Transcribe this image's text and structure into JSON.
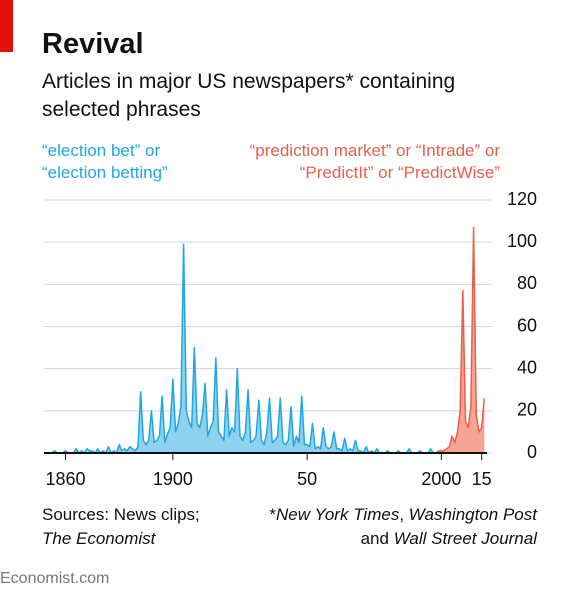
{
  "chart_data": {
    "type": "area",
    "title": "Revival",
    "subtitle": "Articles in major US newspapers* containing selected phrases",
    "series": [
      {
        "name": "“election bet” or “election betting”",
        "color": "#1fa8e0",
        "fill": "#8ed2f0",
        "x": [
          1852,
          1853,
          1854,
          1855,
          1856,
          1857,
          1858,
          1859,
          1860,
          1861,
          1862,
          1863,
          1864,
          1865,
          1866,
          1867,
          1868,
          1869,
          1870,
          1871,
          1872,
          1873,
          1874,
          1875,
          1876,
          1877,
          1878,
          1879,
          1880,
          1881,
          1882,
          1883,
          1884,
          1885,
          1886,
          1887,
          1888,
          1889,
          1890,
          1891,
          1892,
          1893,
          1894,
          1895,
          1896,
          1897,
          1898,
          1899,
          1900,
          1901,
          1902,
          1903,
          1904,
          1905,
          1906,
          1907,
          1908,
          1909,
          1910,
          1911,
          1912,
          1913,
          1914,
          1915,
          1916,
          1917,
          1918,
          1919,
          1920,
          1921,
          1922,
          1923,
          1924,
          1925,
          1926,
          1927,
          1928,
          1929,
          1930,
          1931,
          1932,
          1933,
          1934,
          1935,
          1936,
          1937,
          1938,
          1939,
          1940,
          1941,
          1942,
          1943,
          1944,
          1945,
          1946,
          1947,
          1948,
          1949,
          1950,
          1951,
          1952,
          1953,
          1954,
          1955,
          1956,
          1957,
          1958,
          1959,
          1960,
          1961,
          1962,
          1963,
          1964,
          1965,
          1966,
          1967,
          1968,
          1969,
          1970,
          1971,
          1972,
          1973,
          1974,
          1975,
          1976,
          1977,
          1978,
          1979,
          1980,
          1981,
          1982,
          1983,
          1984,
          1985,
          1986,
          1987,
          1988,
          1989,
          1990,
          1991,
          1992,
          1993,
          1994,
          1995,
          1996,
          1997,
          1998,
          1999,
          2000,
          2001,
          2002,
          2003,
          2004,
          2005,
          2006,
          2007,
          2008,
          2009,
          2010,
          2011,
          2012,
          2013,
          2014,
          2015,
          2016
        ],
        "values": [
          0,
          0,
          0,
          0,
          1,
          0,
          0,
          0,
          1,
          0,
          0,
          0,
          2,
          0,
          1,
          0,
          2,
          1,
          1,
          0,
          2,
          0,
          1,
          0,
          3,
          0,
          1,
          0,
          4,
          1,
          2,
          1,
          3,
          2,
          1,
          3,
          29,
          6,
          4,
          6,
          20,
          5,
          6,
          8,
          27,
          5,
          9,
          12,
          35,
          10,
          14,
          22,
          99,
          20,
          15,
          12,
          50,
          14,
          12,
          18,
          33,
          8,
          12,
          15,
          45,
          10,
          8,
          6,
          30,
          8,
          12,
          10,
          40,
          8,
          6,
          10,
          30,
          5,
          6,
          8,
          25,
          6,
          4,
          10,
          26,
          5,
          6,
          8,
          26,
          5,
          4,
          6,
          22,
          3,
          8,
          5,
          27,
          4,
          4,
          3,
          14,
          2,
          3,
          2,
          12,
          3,
          2,
          3,
          10,
          2,
          2,
          1,
          7,
          1,
          2,
          1,
          6,
          1,
          1,
          0,
          3,
          0,
          1,
          0,
          2,
          0,
          0,
          0,
          1,
          0,
          0,
          0,
          1,
          0,
          0,
          0,
          2,
          0,
          0,
          0,
          1,
          0,
          0,
          0,
          2,
          0,
          0,
          0,
          1,
          0,
          1,
          0,
          5,
          1,
          2,
          3,
          4,
          1,
          2,
          3,
          18,
          2,
          1,
          3,
          4
        ]
      },
      {
        "name": "“prediction market” or “Intrade” or “PredictIt” or “PredictWise”",
        "color": "#e8604c",
        "fill": "#f4a594",
        "x": [
          1990,
          1991,
          1992,
          1993,
          1994,
          1995,
          1996,
          1997,
          1998,
          1999,
          2000,
          2001,
          2002,
          2003,
          2004,
          2005,
          2006,
          2007,
          2008,
          2009,
          2010,
          2011,
          2012,
          2013,
          2014,
          2015,
          2016
        ],
        "values": [
          0,
          0,
          0,
          0,
          0,
          0,
          0,
          0,
          0,
          1,
          1,
          1,
          2,
          3,
          8,
          5,
          10,
          20,
          77,
          15,
          12,
          22,
          107,
          18,
          10,
          12,
          26
        ]
      }
    ],
    "xlim": [
      1852,
      2017
    ],
    "xticks": [
      1860,
      1900,
      {
        "value": 1950,
        "label": "50"
      },
      2000,
      {
        "value": 2015,
        "label": "15"
      }
    ],
    "ylim": [
      0,
      120
    ],
    "yticks": [
      0,
      20,
      40,
      60,
      80,
      100,
      120
    ],
    "grid": true,
    "source": [
      "Sources: News clips;",
      "The Economist"
    ],
    "footnote": [
      [
        "*",
        "New York Times",
        ", ",
        "Washington Post"
      ],
      [
        "and ",
        "Wall Street Journal"
      ]
    ],
    "brand": "Economist.com"
  }
}
